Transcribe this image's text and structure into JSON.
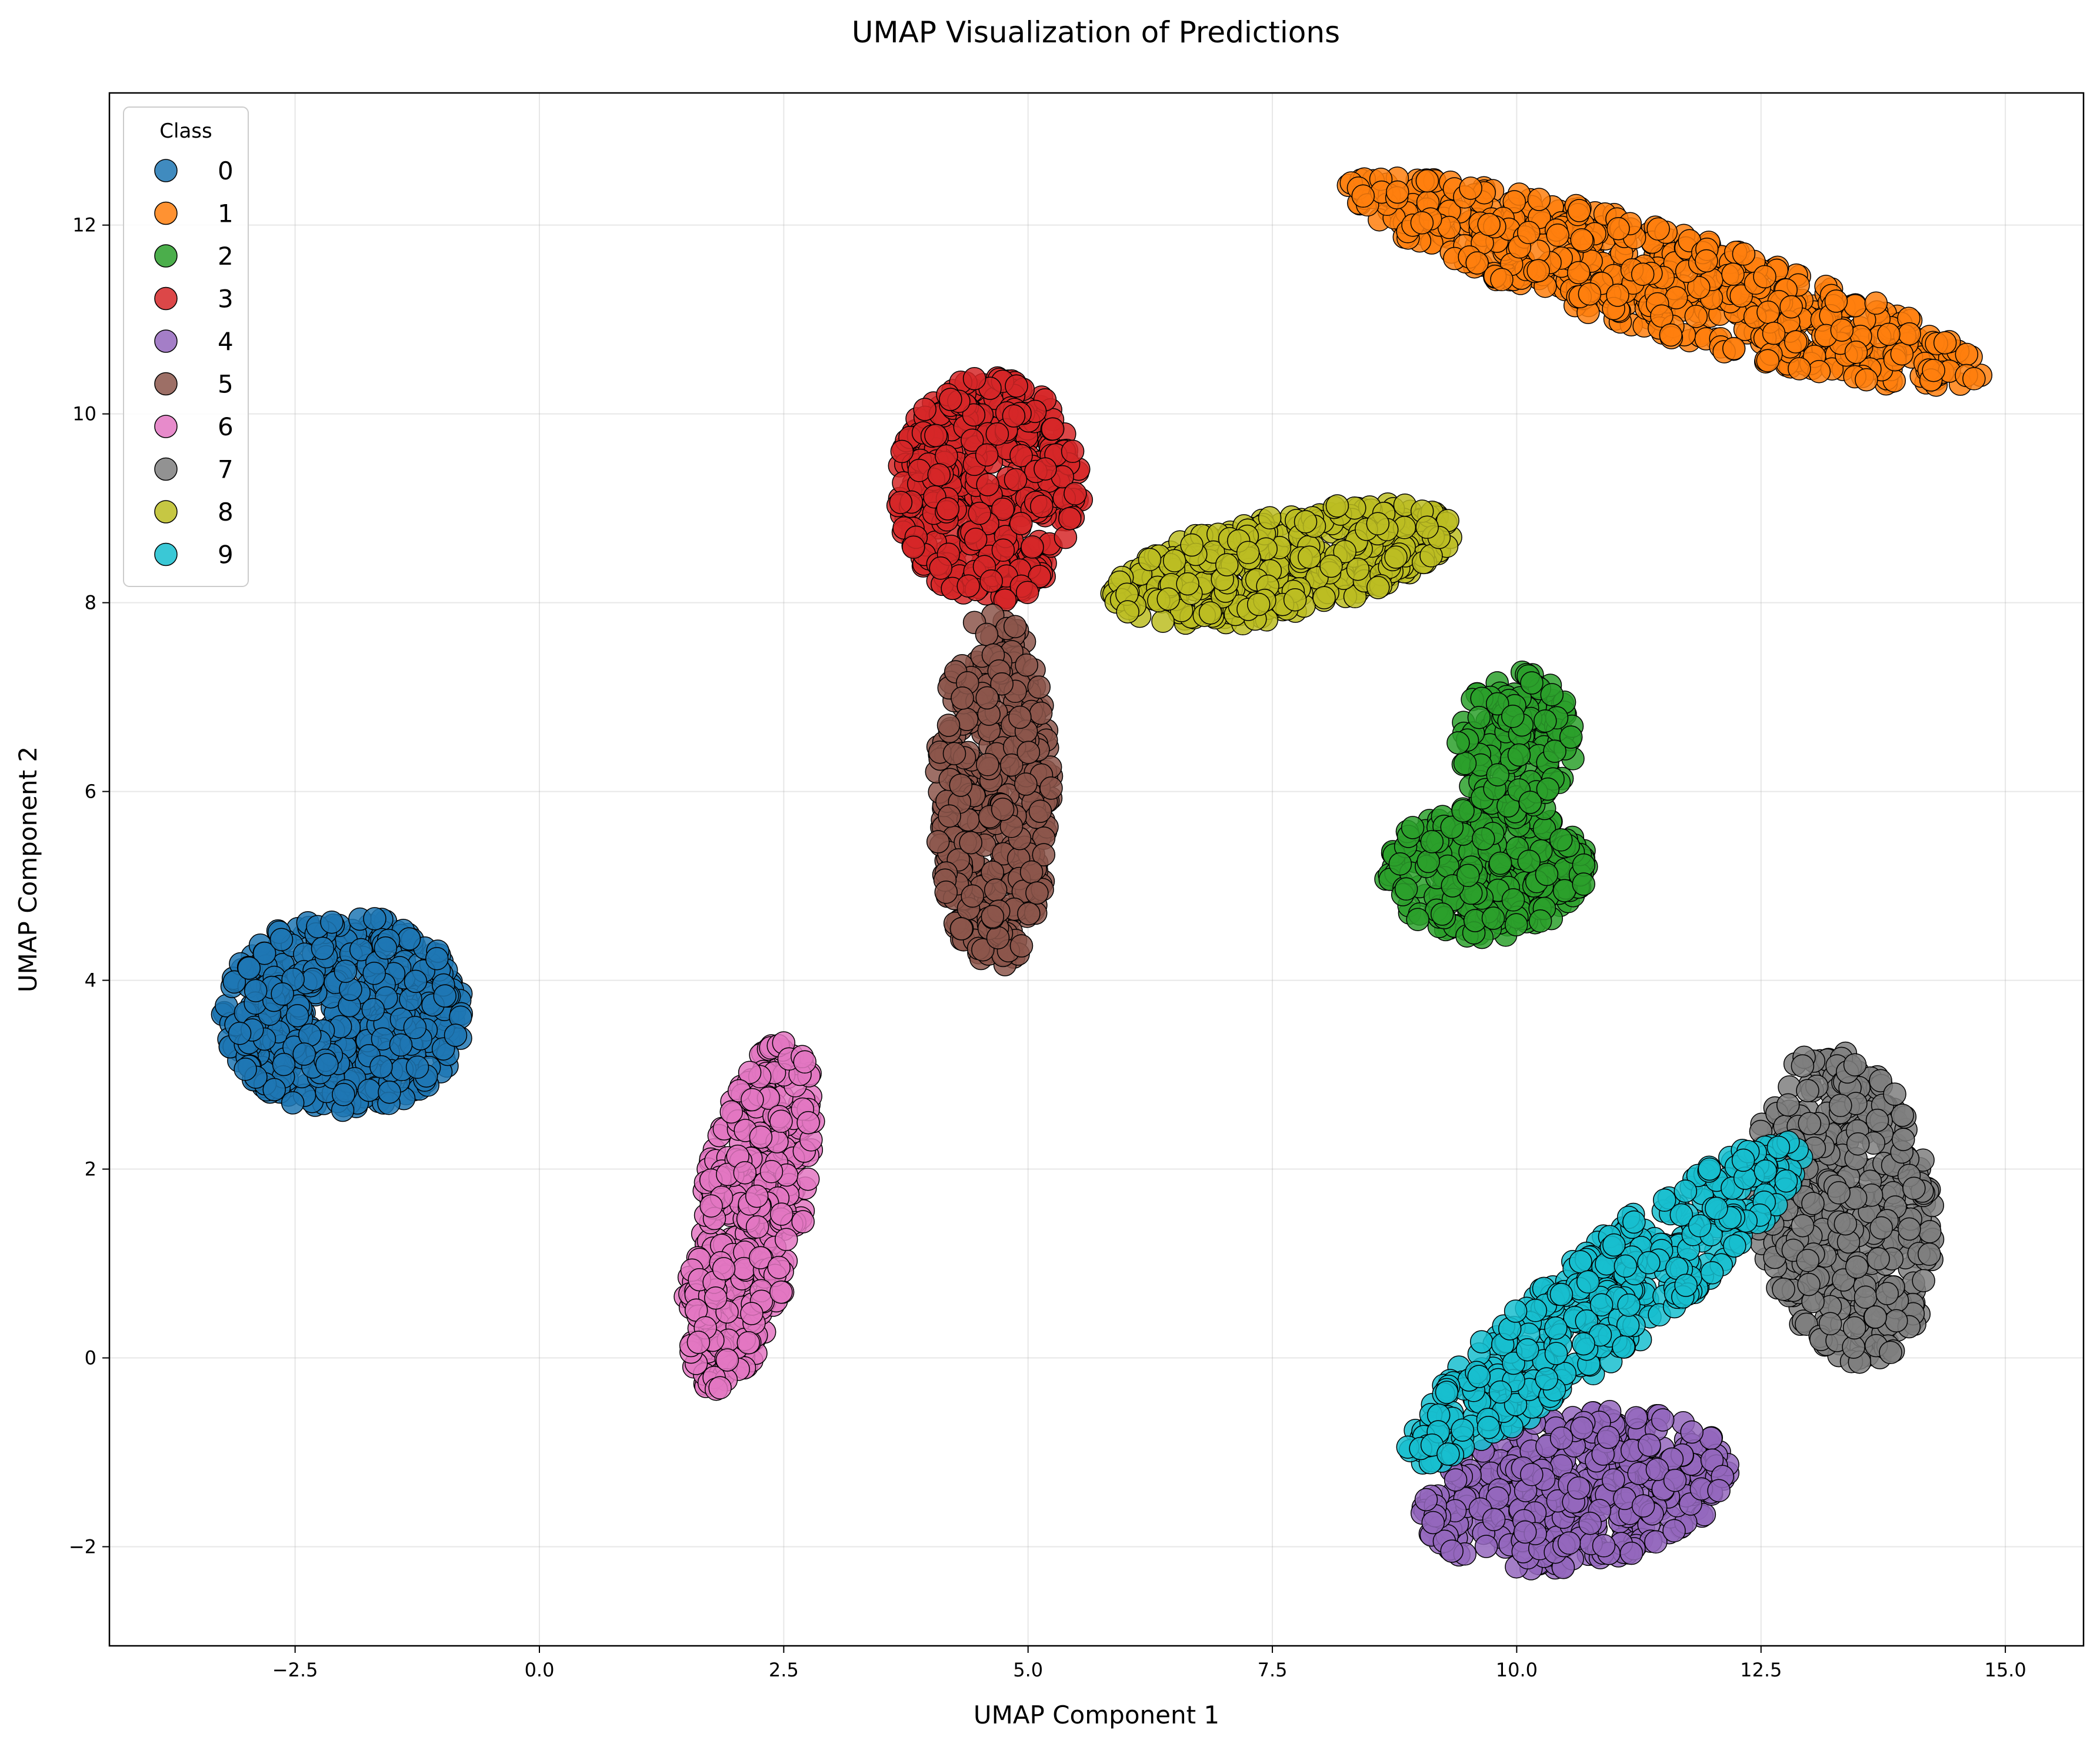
{
  "chart_data": {
    "type": "scatter",
    "title": "UMAP Visualization of Predictions",
    "xlabel": "UMAP Component 1",
    "ylabel": "UMAP Component 2",
    "xlim": [
      -4.4,
      15.8
    ],
    "ylim": [
      -3.05,
      13.4
    ],
    "x_ticks": [
      -2.5,
      0.0,
      2.5,
      5.0,
      7.5,
      10.0,
      12.5,
      15.0
    ],
    "x_tick_labels": [
      "−2.5",
      "0.0",
      "2.5",
      "5.0",
      "7.5",
      "10.0",
      "12.5",
      "15.0"
    ],
    "y_ticks": [
      -2,
      0,
      2,
      4,
      6,
      8,
      10,
      12
    ],
    "y_tick_labels": [
      "−2",
      "0",
      "2",
      "4",
      "6",
      "8",
      "10",
      "12"
    ],
    "grid": true,
    "legend": {
      "title": "Class",
      "position": "top-left"
    },
    "series": [
      {
        "name": "0",
        "color": "#1f77b4",
        "clusters": [
          {
            "cx": -2.0,
            "cy": 3.65,
            "rx": 1.25,
            "ry": 1.05,
            "angle": 0,
            "n": 520
          }
        ]
      },
      {
        "name": "1",
        "color": "#ff7f0e",
        "clusters": [
          {
            "cx": 11.5,
            "cy": 11.4,
            "rx": 3.4,
            "ry": 0.55,
            "angle": -17,
            "n": 650
          }
        ]
      },
      {
        "name": "2",
        "color": "#2ca02c",
        "clusters": [
          {
            "cx": 9.7,
            "cy": 5.15,
            "rx": 1.05,
            "ry": 0.7,
            "angle": 0,
            "n": 320
          },
          {
            "cx": 10.0,
            "cy": 6.5,
            "rx": 0.6,
            "ry": 0.8,
            "angle": 0,
            "n": 180
          }
        ]
      },
      {
        "name": "3",
        "color": "#d62728",
        "clusters": [
          {
            "cx": 4.6,
            "cy": 9.2,
            "rx": 0.95,
            "ry": 1.2,
            "angle": 0,
            "n": 460
          }
        ]
      },
      {
        "name": "4",
        "color": "#9467bd",
        "clusters": [
          {
            "cx": 10.6,
            "cy": -1.4,
            "rx": 1.6,
            "ry": 0.8,
            "angle": 10,
            "n": 450
          }
        ]
      },
      {
        "name": "5",
        "color": "#8c564b",
        "clusters": [
          {
            "cx": 4.65,
            "cy": 6.0,
            "rx": 0.6,
            "ry": 1.9,
            "angle": 0,
            "n": 420
          }
        ]
      },
      {
        "name": "6",
        "color": "#e377c2",
        "clusters": [
          {
            "cx": 2.15,
            "cy": 1.5,
            "rx": 0.55,
            "ry": 1.9,
            "angle": -12,
            "n": 430
          }
        ]
      },
      {
        "name": "7",
        "color": "#7f7f7f",
        "clusters": [
          {
            "cx": 13.35,
            "cy": 1.6,
            "rx": 0.9,
            "ry": 1.7,
            "angle": 8,
            "n": 470
          }
        ]
      },
      {
        "name": "8",
        "color": "#bcbd22",
        "clusters": [
          {
            "cx": 7.6,
            "cy": 8.4,
            "rx": 1.8,
            "ry": 0.55,
            "angle": 12,
            "n": 420
          }
        ]
      },
      {
        "name": "9",
        "color": "#17becf",
        "clusters": [
          {
            "cx": 10.9,
            "cy": 0.6,
            "rx": 2.6,
            "ry": 0.55,
            "angle": 40,
            "n": 460
          }
        ]
      }
    ]
  }
}
